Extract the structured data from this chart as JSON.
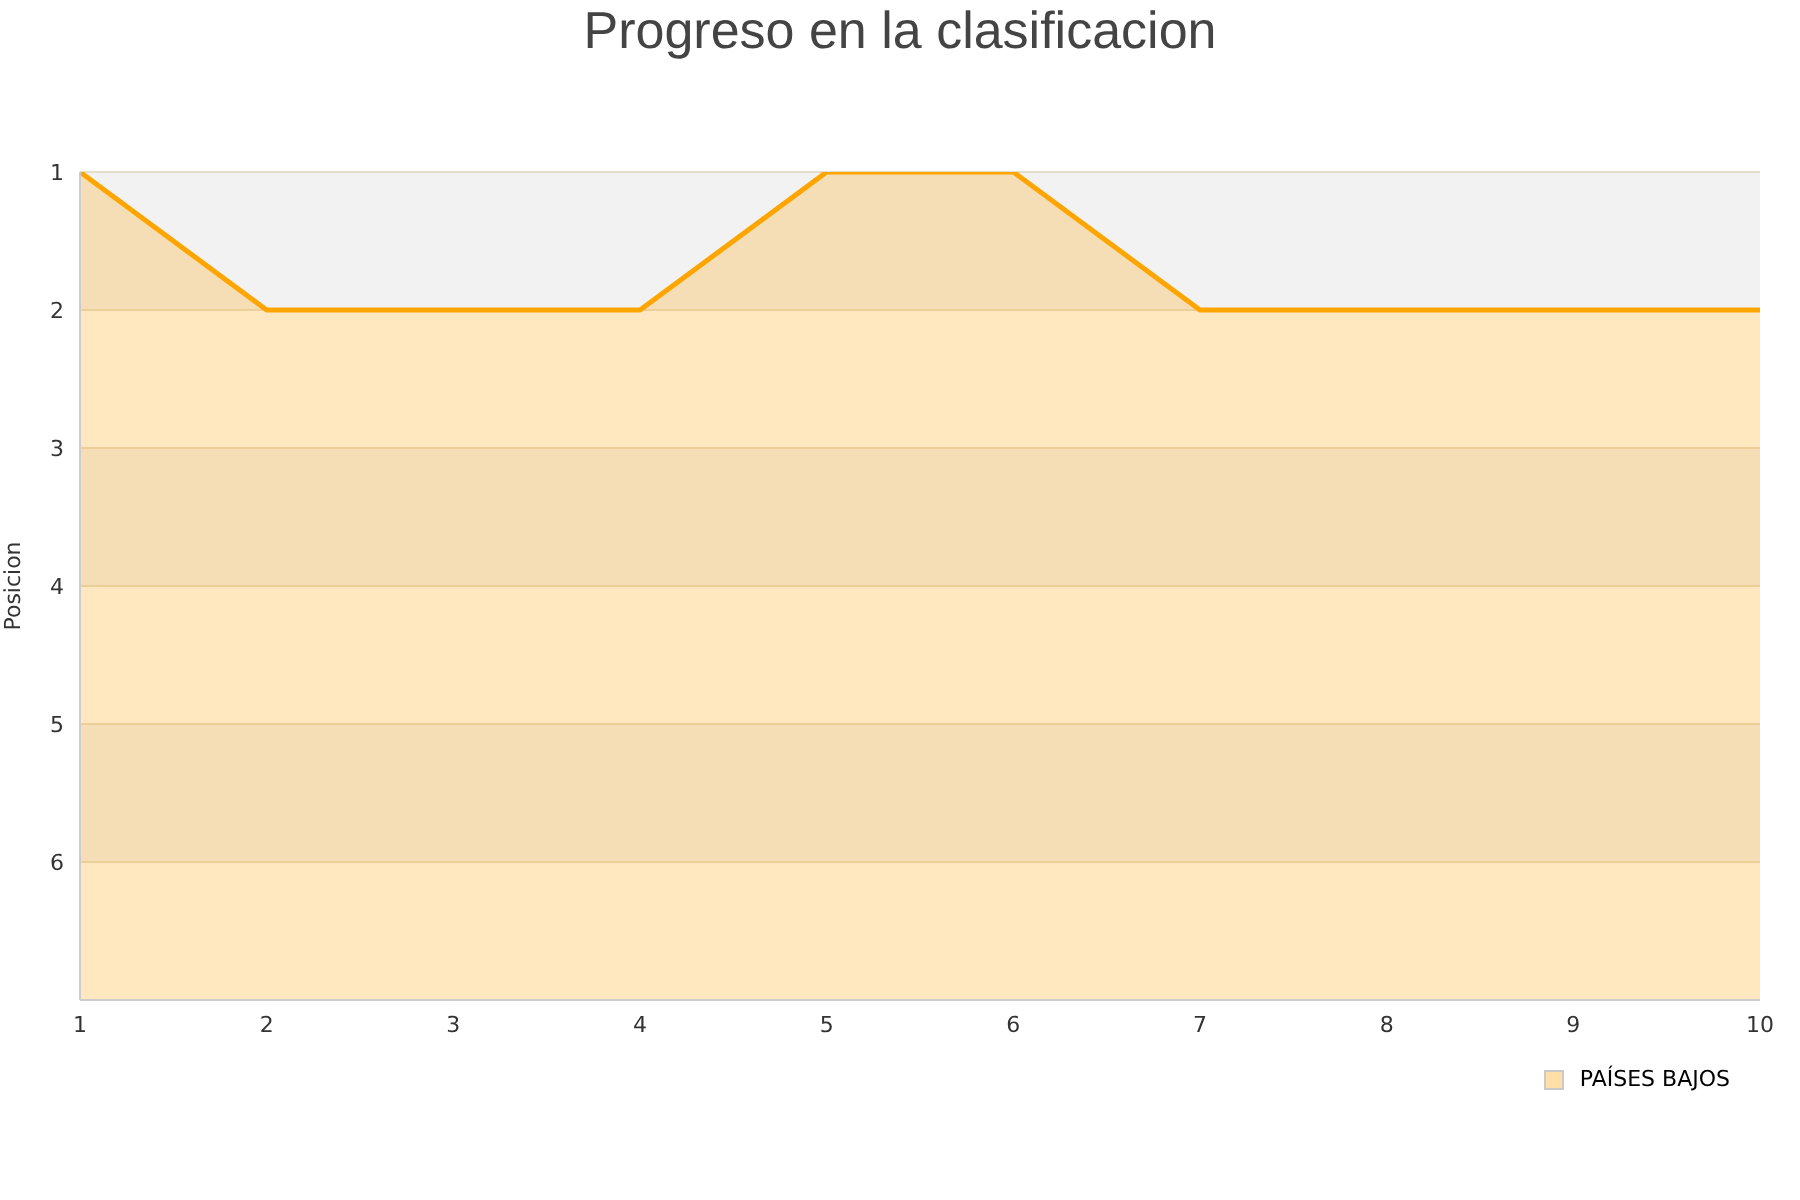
{
  "chart_data": {
    "type": "area",
    "title": "Progreso en la clasificacion",
    "ylabel": "Posicion",
    "x": [
      1,
      2,
      3,
      4,
      5,
      6,
      7,
      8,
      9,
      10
    ],
    "series": [
      {
        "name": "PAÍSES BAJOS",
        "color": "#ffa500",
        "values": [
          1,
          2,
          2,
          2,
          1,
          1,
          2,
          2,
          2,
          2
        ]
      }
    ],
    "xlim": [
      1,
      10
    ],
    "xticks": [
      1,
      2,
      3,
      4,
      5,
      6,
      7,
      8,
      9,
      10
    ],
    "ylim": [
      7,
      1
    ],
    "yticks": [
      1,
      2,
      3,
      4,
      5,
      6
    ],
    "grid": "y",
    "legend": "bottom right"
  }
}
